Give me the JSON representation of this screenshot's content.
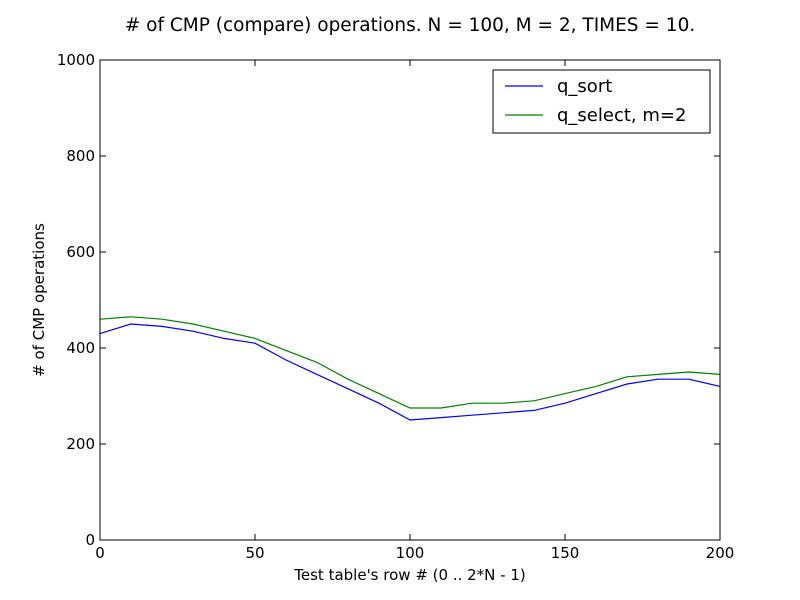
{
  "chart_data": {
    "type": "line",
    "title": "# of CMP (compare) operations. N = 100, M = 2, TIMES = 10.",
    "xlabel": "Test table's row # (0 .. 2*N - 1)",
    "ylabel": "# of CMP operations",
    "xlim": [
      0,
      200
    ],
    "ylim": [
      0,
      1000
    ],
    "xticks": [
      "0",
      "50",
      "100",
      "150",
      "200"
    ],
    "yticks": [
      "0",
      "200",
      "400",
      "600",
      "800",
      "1000"
    ],
    "legend_position": "top-right",
    "grid": false,
    "x": [
      0,
      10,
      20,
      30,
      40,
      50,
      60,
      70,
      80,
      90,
      100,
      110,
      120,
      130,
      140,
      150,
      160,
      170,
      180,
      190,
      200
    ],
    "series": [
      {
        "name": "q_sort",
        "color": "#0000ff",
        "values": [
          430,
          450,
          445,
          435,
          420,
          410,
          375,
          345,
          315,
          285,
          250,
          255,
          260,
          265,
          270,
          285,
          305,
          325,
          335,
          335,
          320
        ]
      },
      {
        "name": "q_select, m=2",
        "color": "#008000",
        "values": [
          460,
          465,
          460,
          450,
          435,
          420,
          395,
          370,
          335,
          305,
          275,
          275,
          285,
          285,
          290,
          305,
          320,
          340,
          345,
          350,
          345
        ]
      }
    ]
  }
}
